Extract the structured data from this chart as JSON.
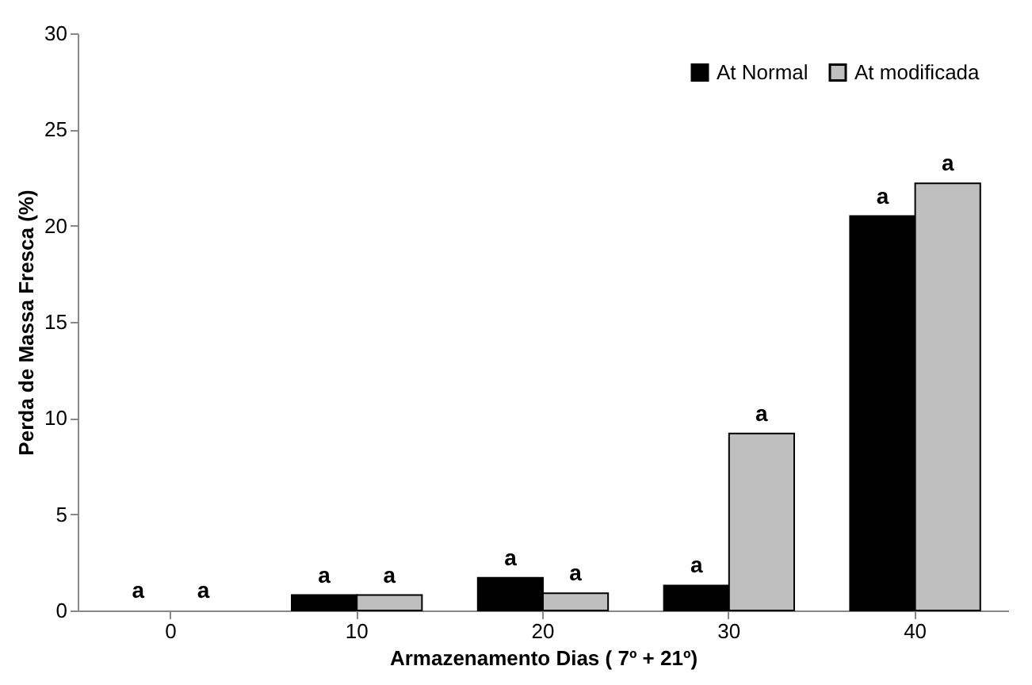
{
  "chart_data": {
    "type": "bar",
    "xlabel": "Armazenamento  Dias ( 7º + 21º)",
    "ylabel": "Perda de Massa Fresca (%)",
    "categories": [
      "0",
      "10",
      "20",
      "30",
      "40"
    ],
    "series": [
      {
        "name": "At Normal",
        "color": "#000000",
        "values": [
          0,
          0.8,
          1.7,
          1.3,
          20.5
        ]
      },
      {
        "name": "At modificada",
        "color": "#bfbfbf",
        "values": [
          0,
          0.8,
          0.9,
          9.2,
          22.2
        ]
      }
    ],
    "annotations": [
      {
        "text": "a",
        "x": "0",
        "y": 0
      },
      {
        "text": "a",
        "x": "0",
        "y": 0
      },
      {
        "text": "a",
        "x": "10",
        "y": 0.8
      },
      {
        "text": "a",
        "x": "10",
        "y": 0.8
      },
      {
        "text": "a",
        "x": "20",
        "y": 1.7
      },
      {
        "text": "a",
        "x": "20",
        "y": 0.9
      },
      {
        "text": "a",
        "x": "30",
        "y": 1.3
      },
      {
        "text": "a",
        "x": "30",
        "y": 9.2
      },
      {
        "text": "a",
        "x": "40",
        "y": 20.5
      },
      {
        "text": "a",
        "x": "40",
        "y": 22.2
      }
    ],
    "ylim": [
      0,
      30
    ],
    "yticks": [
      0,
      5,
      10,
      15,
      20,
      25,
      30
    ],
    "grid": false,
    "legend": "top right"
  }
}
